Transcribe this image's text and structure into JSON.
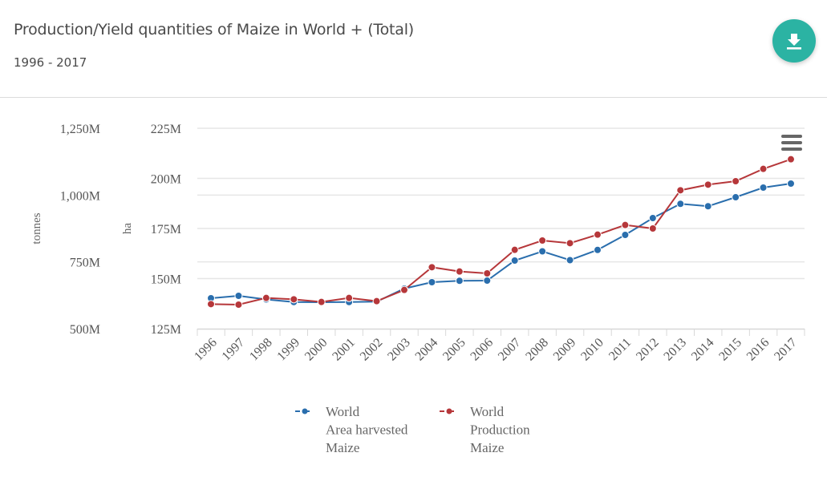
{
  "header": {
    "title": "Production/Yield quantities of Maize in World + (Total)",
    "subtitle": "1996 - 2017",
    "download_icon": "download-icon"
  },
  "menu": {
    "icon": "hamburger-menu-icon"
  },
  "colors": {
    "area_harvested": "#2a6ead",
    "production": "#b6373a",
    "download_button": "#2bb3a3",
    "grid": "#e6e6e6"
  },
  "chart_data": {
    "type": "line",
    "title": "Production/Yield quantities of Maize in World + (Total)",
    "subtitle": "1996 - 2017",
    "x": [
      "1996",
      "1997",
      "1998",
      "1999",
      "2000",
      "2001",
      "2002",
      "2003",
      "2004",
      "2005",
      "2006",
      "2007",
      "2008",
      "2009",
      "2010",
      "2011",
      "2012",
      "2013",
      "2014",
      "2015",
      "2016",
      "2017"
    ],
    "axes": {
      "y_left_outer": {
        "title": "tonnes",
        "ticks": [
          "500M",
          "750M",
          "1,000M",
          "1,250M"
        ],
        "range": [
          500,
          1250
        ],
        "unit": "M tonnes"
      },
      "y_left_inner": {
        "title": "ha",
        "ticks": [
          "125M",
          "150M",
          "175M",
          "200M",
          "225M"
        ],
        "range": [
          125,
          225
        ],
        "unit": "M ha"
      }
    },
    "grid": true,
    "series": [
      {
        "name": "World Area harvested Maize",
        "legend_lines": [
          "World",
          "Area harvested",
          "Maize"
        ],
        "axis": "ha",
        "unit": "M ha",
        "values": [
          140.2,
          141.4,
          139.6,
          138.3,
          138.2,
          138.3,
          138.5,
          145.0,
          148.2,
          148.9,
          149.0,
          159.0,
          163.6,
          159.2,
          164.3,
          171.8,
          180.2,
          187.3,
          186.1,
          190.6,
          195.4,
          197.4
        ]
      },
      {
        "name": "World Production Maize",
        "legend_lines": [
          "World",
          "Production",
          "Maize"
        ],
        "axis": "tonnes",
        "unit": "M tonnes",
        "values": [
          592,
          590,
          615,
          610,
          600,
          615,
          603,
          645,
          730,
          714,
          707,
          795,
          830,
          820,
          852,
          888,
          875,
          1018,
          1039,
          1052,
          1098,
          1134
        ]
      }
    ],
    "legend_position": "bottom-center"
  }
}
